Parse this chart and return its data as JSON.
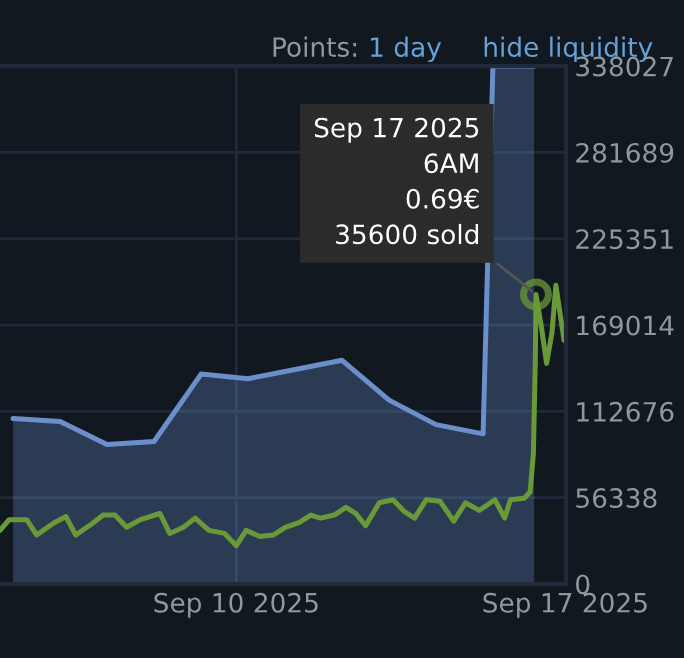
{
  "chart_data": {
    "type": "line",
    "xlim": [
      "2025-09-05T20:20",
      "2025-09-17T21:20"
    ],
    "xticks": [
      {
        "value": "2025-09-10T21:00",
        "label": "Sep 10 2025"
      },
      {
        "value": "2025-09-17T21:00",
        "label": "Sep 17 2025"
      }
    ],
    "ylim": [
      0,
      338027
    ],
    "yticks": [
      0,
      56338,
      112676,
      169014,
      225351,
      281689,
      338027
    ],
    "grid": true,
    "legend": false,
    "marker": "none",
    "line_style": "solid",
    "series": [
      {
        "type": "area",
        "color": "#6b8fca",
        "x": [
          "2025-09-06T03:00",
          "2025-09-07T03:00",
          "2025-09-08T03:00",
          "2025-09-09T03:00",
          "2025-09-10T03:00",
          "2025-09-11T03:00",
          "2025-09-12T03:00",
          "2025-09-13T03:00",
          "2025-09-14T03:00",
          "2025-09-15T03:00",
          "2025-09-16T03:00",
          "2025-09-16T08:00",
          "2025-09-17T05:00"
        ],
        "values": [
          108000,
          106000,
          91000,
          93000,
          137000,
          134000,
          140000,
          146000,
          120000,
          104000,
          98000,
          338027,
          338027
        ]
      },
      {
        "color": "#6a9a37",
        "x": [
          "2025-09-05T20:20",
          "2025-09-06T01:00",
          "2025-09-06T10:00",
          "2025-09-06T15:00",
          "2025-09-07T00:00",
          "2025-09-07T06:00",
          "2025-09-07T11:00",
          "2025-09-07T20:00",
          "2025-09-08T01:00",
          "2025-09-08T07:00",
          "2025-09-08T13:00",
          "2025-09-08T20:00",
          "2025-09-09T06:00",
          "2025-09-09T11:00",
          "2025-09-09T18:00",
          "2025-09-10T00:00",
          "2025-09-10T07:00",
          "2025-09-10T15:00",
          "2025-09-10T21:00",
          "2025-09-11T02:00",
          "2025-09-11T09:00",
          "2025-09-11T16:00",
          "2025-09-11T22:00",
          "2025-09-12T05:00",
          "2025-09-12T11:00",
          "2025-09-12T16:00",
          "2025-09-12T23:00",
          "2025-09-13T05:00",
          "2025-09-13T10:00",
          "2025-09-13T15:00",
          "2025-09-13T22:00",
          "2025-09-14T05:00",
          "2025-09-14T11:00",
          "2025-09-14T16:00",
          "2025-09-14T22:00",
          "2025-09-15T05:00",
          "2025-09-15T12:00",
          "2025-09-15T18:00",
          "2025-09-16T01:00",
          "2025-09-16T09:00",
          "2025-09-16T14:00",
          "2025-09-16T17:00",
          "2025-09-17T00:00",
          "2025-09-17T03:00",
          "2025-09-17T04:40",
          "2025-09-17T05:40",
          "2025-09-17T06:00",
          "2025-09-17T08:45",
          "2025-09-17T11:25",
          "2025-09-17T14:10",
          "2025-09-17T16:10",
          "2025-09-17T20:20"
        ],
        "values": [
          35000,
          42000,
          42000,
          32000,
          40000,
          44000,
          32000,
          40000,
          45000,
          45000,
          37000,
          42000,
          46000,
          33000,
          37000,
          43000,
          35000,
          33000,
          25000,
          35000,
          31000,
          32000,
          37000,
          40000,
          45000,
          43000,
          45000,
          50000,
          46000,
          38000,
          53000,
          55000,
          47000,
          43000,
          55000,
          54000,
          41000,
          53000,
          48000,
          55000,
          43000,
          55000,
          56000,
          60000,
          85000,
          146000,
          189000,
          168000,
          144000,
          164000,
          195000,
          159000
        ]
      }
    ],
    "annotations": [
      {
        "text": "Sep 17 2025\n6AM\n0.69€\n35600 sold",
        "x": "2025-09-17T06:00",
        "y": 189000
      },
      "Points:",
      "1 day",
      "hide liquidity"
    ]
  }
}
